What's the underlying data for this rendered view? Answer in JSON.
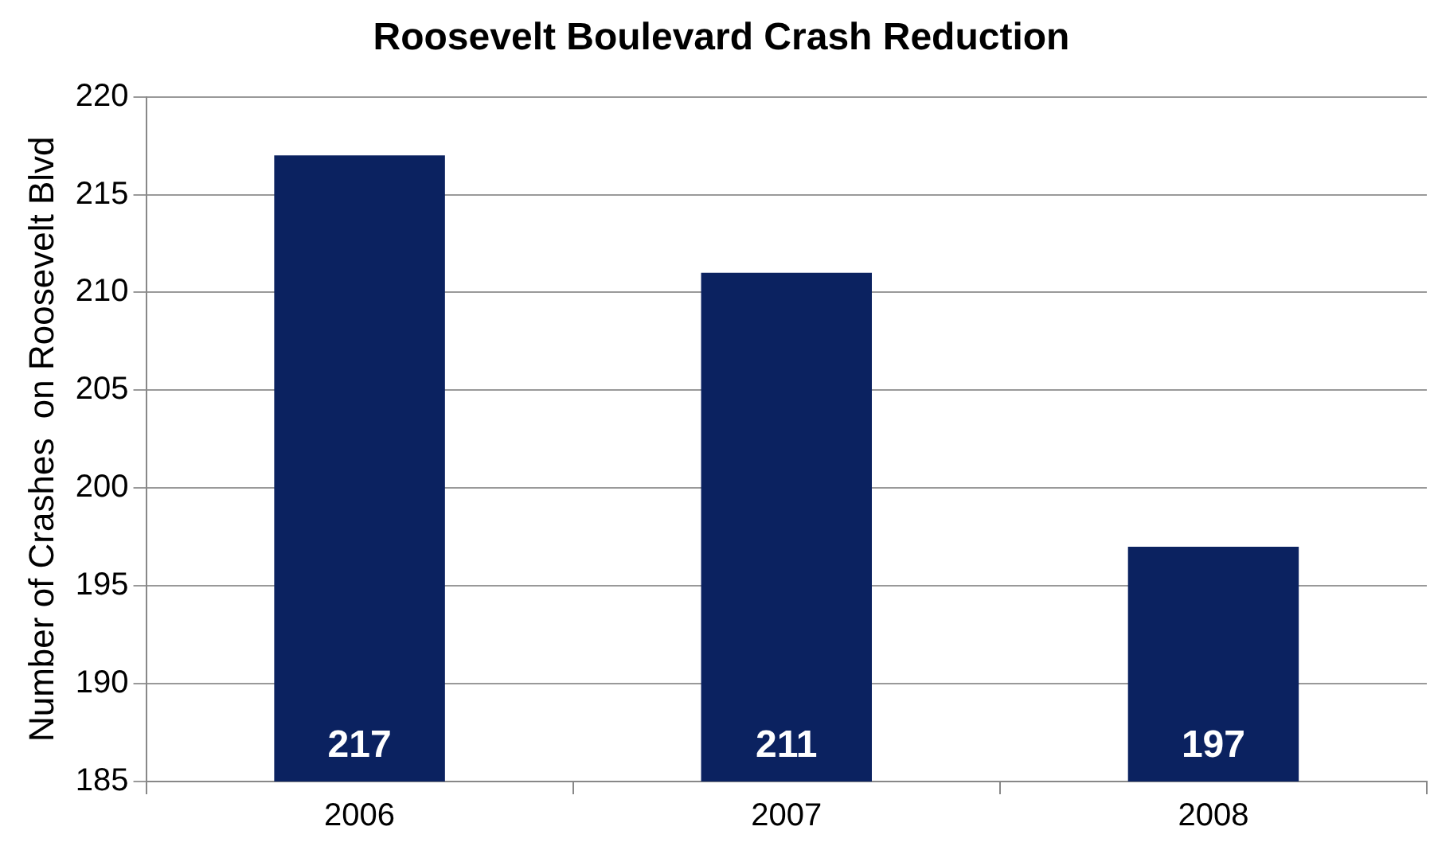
{
  "chart_data": {
    "type": "bar",
    "title": "Roosevelt Boulevard Crash Reduction",
    "ylabel": "Number of Crashes  on Roosevelt Blvd",
    "categories": [
      "2006",
      "2007",
      "2008"
    ],
    "values": [
      217,
      211,
      197
    ],
    "color": "#0b2260",
    "ylim": [
      185,
      220
    ],
    "yticks": [
      185,
      190,
      195,
      200,
      205,
      210,
      215,
      220
    ],
    "grid": "y",
    "data_labels": true,
    "legend": false
  }
}
